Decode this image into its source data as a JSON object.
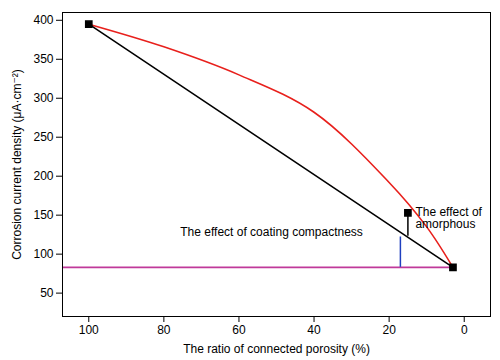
{
  "chart_data": {
    "type": "line",
    "x_label": "The ratio of connected porosity (%)",
    "y_label": "Corrosion current density (μA·cm⁻²)",
    "xlim": [
      107,
      -7
    ],
    "xticks": [
      100,
      80,
      60,
      40,
      20,
      0
    ],
    "ylim": [
      20,
      410
    ],
    "yticks": [
      50,
      100,
      150,
      200,
      250,
      300,
      350,
      400
    ],
    "grid": false,
    "series": [
      {
        "type": "line",
        "color": "#e8201c",
        "line_style": "solid",
        "x": [
          100,
          80,
          60,
          40,
          20,
          10,
          3
        ],
        "values": [
          395,
          366,
          330,
          282,
          192,
          135,
          83
        ]
      },
      {
        "type": "line",
        "color": "#000000",
        "line_style": "solid",
        "x": [
          100,
          3
        ],
        "values": [
          395,
          83
        ]
      },
      {
        "type": "line",
        "color": "#c0399a",
        "line_style": "solid",
        "x": [
          107,
          3
        ],
        "values": [
          83,
          83
        ]
      },
      {
        "type": "scatter",
        "color": "#000000",
        "marker": "square",
        "x": [
          100,
          15,
          3
        ],
        "values": [
          395,
          153,
          83
        ]
      }
    ],
    "annotations": [
      {
        "text": "The effect of coating compactness",
        "x": 27,
        "y": 128,
        "bracket_x": 17,
        "y1": 83,
        "y2": 122,
        "color": "#1f3fbf"
      },
      {
        "text": "The effect of\namorphous",
        "x": 13,
        "y": 146,
        "bracket_x": 15,
        "y1": 123,
        "y2": 152,
        "color": "#000000"
      }
    ]
  }
}
